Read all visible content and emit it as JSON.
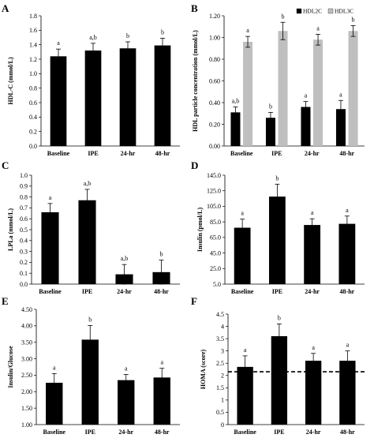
{
  "chart_data": [
    {
      "panel": "A",
      "type": "bar",
      "categories": [
        "Baseline",
        "IPE",
        "24-hr",
        "48-hr"
      ],
      "series": [
        {
          "values": [
            1.24,
            1.32,
            1.35,
            1.39
          ],
          "errors": [
            0.1,
            0.1,
            0.09,
            0.1
          ],
          "color": "#000000"
        }
      ],
      "sig": [
        [
          "a"
        ],
        [
          "a,b"
        ],
        [
          "b"
        ],
        [
          "b"
        ]
      ],
      "ylabel": "HDL-C (mmol/L)",
      "ylim": [
        0,
        1.8
      ],
      "yticks": [
        "0.0",
        "0.2",
        "0.4",
        "0.6",
        "0.8",
        "1.0",
        "1.2",
        "1.4",
        "1.6",
        "1.8"
      ]
    },
    {
      "panel": "B",
      "type": "bar",
      "categories": [
        "Baseline",
        "IPE",
        "24-hr",
        "48-hr"
      ],
      "series": [
        {
          "name": "HDL2C",
          "values": [
            0.31,
            0.26,
            0.36,
            0.34
          ],
          "errors": [
            0.05,
            0.05,
            0.05,
            0.08
          ],
          "color": "#000000"
        },
        {
          "name": "HDL3C",
          "values": [
            0.96,
            1.06,
            0.98,
            1.06
          ],
          "errors": [
            0.05,
            0.08,
            0.05,
            0.05
          ],
          "color": "#bfbfbf"
        }
      ],
      "sig": [
        [
          "a,b",
          "a"
        ],
        [
          "b",
          "b"
        ],
        [
          "a",
          "a"
        ],
        [
          "a",
          "b"
        ]
      ],
      "ylabel": "HDL particle concentration (mmol/L)",
      "ylim": [
        0,
        1.2
      ],
      "yticks": [
        "0.00",
        "0.20",
        "0.40",
        "0.60",
        "0.80",
        "1.00",
        "1.20"
      ],
      "legend_position": "top-right"
    },
    {
      "panel": "C",
      "type": "bar",
      "categories": [
        "Baseline",
        "IPE",
        "24-hr",
        "48-hr"
      ],
      "series": [
        {
          "values": [
            0.66,
            0.77,
            0.09,
            0.11
          ],
          "errors": [
            0.08,
            0.1,
            0.09,
            0.11
          ],
          "color": "#000000"
        }
      ],
      "sig": [
        [
          "a"
        ],
        [
          "a,b"
        ],
        [
          "a,b"
        ],
        [
          "b"
        ]
      ],
      "ylabel": "LPLa (mmol/L)",
      "ylim": [
        0,
        1.0
      ],
      "yticks": [
        "0.0",
        "0.1",
        "0.2",
        "0.3",
        "0.4",
        "0.5",
        "0.6",
        "0.7",
        "0.8",
        "0.9",
        "1.0"
      ]
    },
    {
      "panel": "D",
      "type": "bar",
      "categories": [
        "Baseline",
        "IPE",
        "24-hr",
        "48-hr"
      ],
      "series": [
        {
          "values": [
            77.5,
            117.5,
            81.0,
            82.5
          ],
          "errors": [
            11,
            16,
            8,
            10
          ],
          "color": "#000000"
        }
      ],
      "sig": [
        [
          "a"
        ],
        [
          "b"
        ],
        [
          "a"
        ],
        [
          "a"
        ]
      ],
      "ylabel": "Insulin (pmol/L)",
      "ylim": [
        5,
        145
      ],
      "yticks": [
        "5.0",
        "25.0",
        "45.0",
        "65.0",
        "85.0",
        "105.0",
        "125.0",
        "145.0"
      ]
    },
    {
      "panel": "E",
      "type": "bar",
      "categories": [
        "Baseline",
        "IPE",
        "24-hr",
        "48-hr"
      ],
      "series": [
        {
          "values": [
            2.27,
            3.58,
            2.35,
            2.43
          ],
          "errors": [
            0.28,
            0.43,
            0.17,
            0.28
          ],
          "color": "#000000"
        }
      ],
      "sig": [
        [
          "a"
        ],
        [
          "b"
        ],
        [
          "a"
        ],
        [
          "a"
        ]
      ],
      "ylabel": "Insulin/Glucose",
      "ylim": [
        1.0,
        4.5
      ],
      "yticks": [
        "1.00",
        "1.50",
        "2.00",
        "2.50",
        "3.00",
        "3.50",
        "4.00",
        "4.50"
      ]
    },
    {
      "panel": "F",
      "type": "bar",
      "categories": [
        "Baseline",
        "IPE",
        "24-hr",
        "48-hr"
      ],
      "series": [
        {
          "values": [
            2.35,
            3.6,
            2.6,
            2.6
          ],
          "errors": [
            0.45,
            0.5,
            0.3,
            0.4
          ],
          "color": "#000000"
        }
      ],
      "sig": [
        [
          "a"
        ],
        [
          "b"
        ],
        [
          "a"
        ],
        [
          "a"
        ]
      ],
      "ylabel": "HOMA (score)",
      "ylim": [
        0,
        4.5
      ],
      "yticks": [
        "0",
        "0.5",
        "1",
        "1.5",
        "2",
        "2.5",
        "3",
        "3.5",
        "4",
        "4.5"
      ],
      "reference_line": 2.15
    }
  ]
}
